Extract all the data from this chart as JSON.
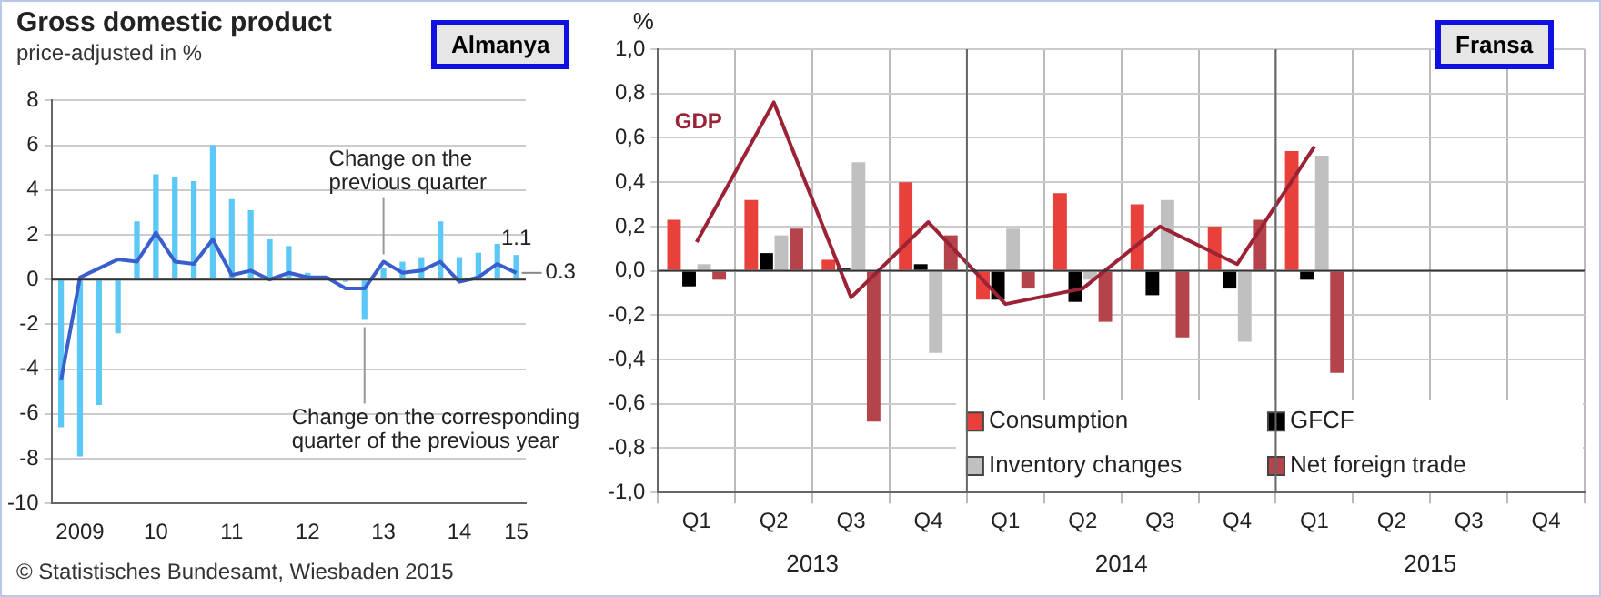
{
  "chart_data": [
    {
      "type": "bar",
      "title": "Gross domestic product",
      "subtitle": "price-adjusted in %",
      "categories": [
        null,
        "2009",
        null,
        null,
        null,
        "10",
        null,
        null,
        null,
        "11",
        null,
        null,
        null,
        "12",
        null,
        null,
        null,
        "13",
        null,
        null,
        null,
        "14",
        null,
        null,
        "15"
      ],
      "series": [
        {
          "name": "Change on the corresponding quarter of the previous year",
          "color": "#5bc8f5",
          "values": [
            -6.6,
            -7.9,
            -5.6,
            -2.4,
            2.6,
            4.7,
            4.6,
            4.4,
            6.0,
            3.6,
            3.1,
            1.8,
            1.5,
            0.3,
            null,
            -0.1,
            -1.8,
            0.5,
            0.8,
            1.0,
            2.6,
            1.0,
            1.2,
            1.6,
            1.1
          ],
          "value_labels": [
            null,
            null,
            null,
            null,
            null,
            null,
            null,
            null,
            null,
            null,
            null,
            null,
            null,
            null,
            null,
            null,
            null,
            null,
            null,
            null,
            null,
            null,
            null,
            null,
            "1.1"
          ]
        },
        {
          "name": "Change on the previous quarter",
          "type": "line",
          "color": "#3a5fcd",
          "values": [
            -4.5,
            0.1,
            0.5,
            0.9,
            0.8,
            2.1,
            0.8,
            0.7,
            1.8,
            0.2,
            0.4,
            0.0,
            0.3,
            0.1,
            0.1,
            -0.4,
            -0.4,
            0.8,
            0.3,
            0.4,
            0.8,
            -0.1,
            0.1,
            0.7,
            0.3
          ],
          "value_labels": [
            null,
            null,
            null,
            null,
            null,
            null,
            null,
            null,
            null,
            null,
            null,
            null,
            null,
            null,
            null,
            null,
            null,
            null,
            null,
            null,
            null,
            null,
            null,
            null,
            "0.3"
          ]
        }
      ],
      "ylim": [
        -10,
        8
      ],
      "yticks": [
        -10,
        -8,
        -6,
        -4,
        -2,
        0,
        2,
        4,
        6,
        8
      ],
      "grid": "y",
      "marker": "none",
      "annotations": [
        "Almanya",
        "© Statistisches Bundesamt, Wiesbaden 2015"
      ]
    },
    {
      "type": "bar",
      "ylabel": "%",
      "categories": [
        "Q1",
        "Q2",
        "Q3",
        "Q4",
        "Q1",
        "Q2",
        "Q3",
        "Q4",
        "Q1",
        "Q2",
        "Q3",
        "Q4"
      ],
      "series": [
        {
          "name": "Consumption",
          "color": "#e8413b",
          "values": [
            0.23,
            0.32,
            0.05,
            0.4,
            -0.13,
            0.35,
            0.3,
            0.2,
            0.54,
            null,
            null,
            null
          ]
        },
        {
          "name": "GFCF",
          "color": "#000000",
          "values": [
            -0.07,
            0.08,
            0.01,
            0.03,
            -0.13,
            -0.14,
            -0.11,
            -0.08,
            -0.04,
            null,
            null,
            null
          ]
        },
        {
          "name": "Inventory changes",
          "color": "#c0c0c0",
          "values": [
            0.03,
            0.16,
            0.49,
            -0.37,
            0.19,
            -0.04,
            0.32,
            -0.32,
            0.52,
            null,
            null,
            null
          ]
        },
        {
          "name": "Net foreign trade",
          "color": "#b5434b",
          "values": [
            -0.04,
            0.19,
            -0.68,
            0.16,
            -0.08,
            -0.23,
            -0.3,
            0.23,
            -0.46,
            null,
            null,
            null
          ]
        },
        {
          "name": "GDP",
          "type": "line",
          "color": "#9b2335",
          "values": [
            0.13,
            0.76,
            -0.12,
            0.22,
            -0.15,
            -0.08,
            0.2,
            0.03,
            0.56,
            null,
            null,
            null
          ]
        }
      ],
      "ylim": [
        -1,
        1
      ],
      "yticks": [
        {
          "value": -1,
          "label": "-1,0"
        },
        {
          "value": -0.8,
          "label": "-0,8"
        },
        {
          "value": -0.6,
          "label": "-0,6"
        },
        {
          "value": -0.4,
          "label": "-0,4"
        },
        {
          "value": -0.2,
          "label": "-0,2"
        },
        {
          "value": 0,
          "label": "0,0"
        },
        {
          "value": 0.2,
          "label": "0,2"
        },
        {
          "value": 0.4,
          "label": "0,4"
        },
        {
          "value": 0.6,
          "label": "0,6"
        },
        {
          "value": 0.8,
          "label": "0,8"
        },
        {
          "value": 1,
          "label": "1,0"
        }
      ],
      "grid": true,
      "legend": "bottom",
      "marker": "none",
      "annotations": [
        "2013",
        "2014",
        "2015",
        "Fransa"
      ]
    }
  ]
}
